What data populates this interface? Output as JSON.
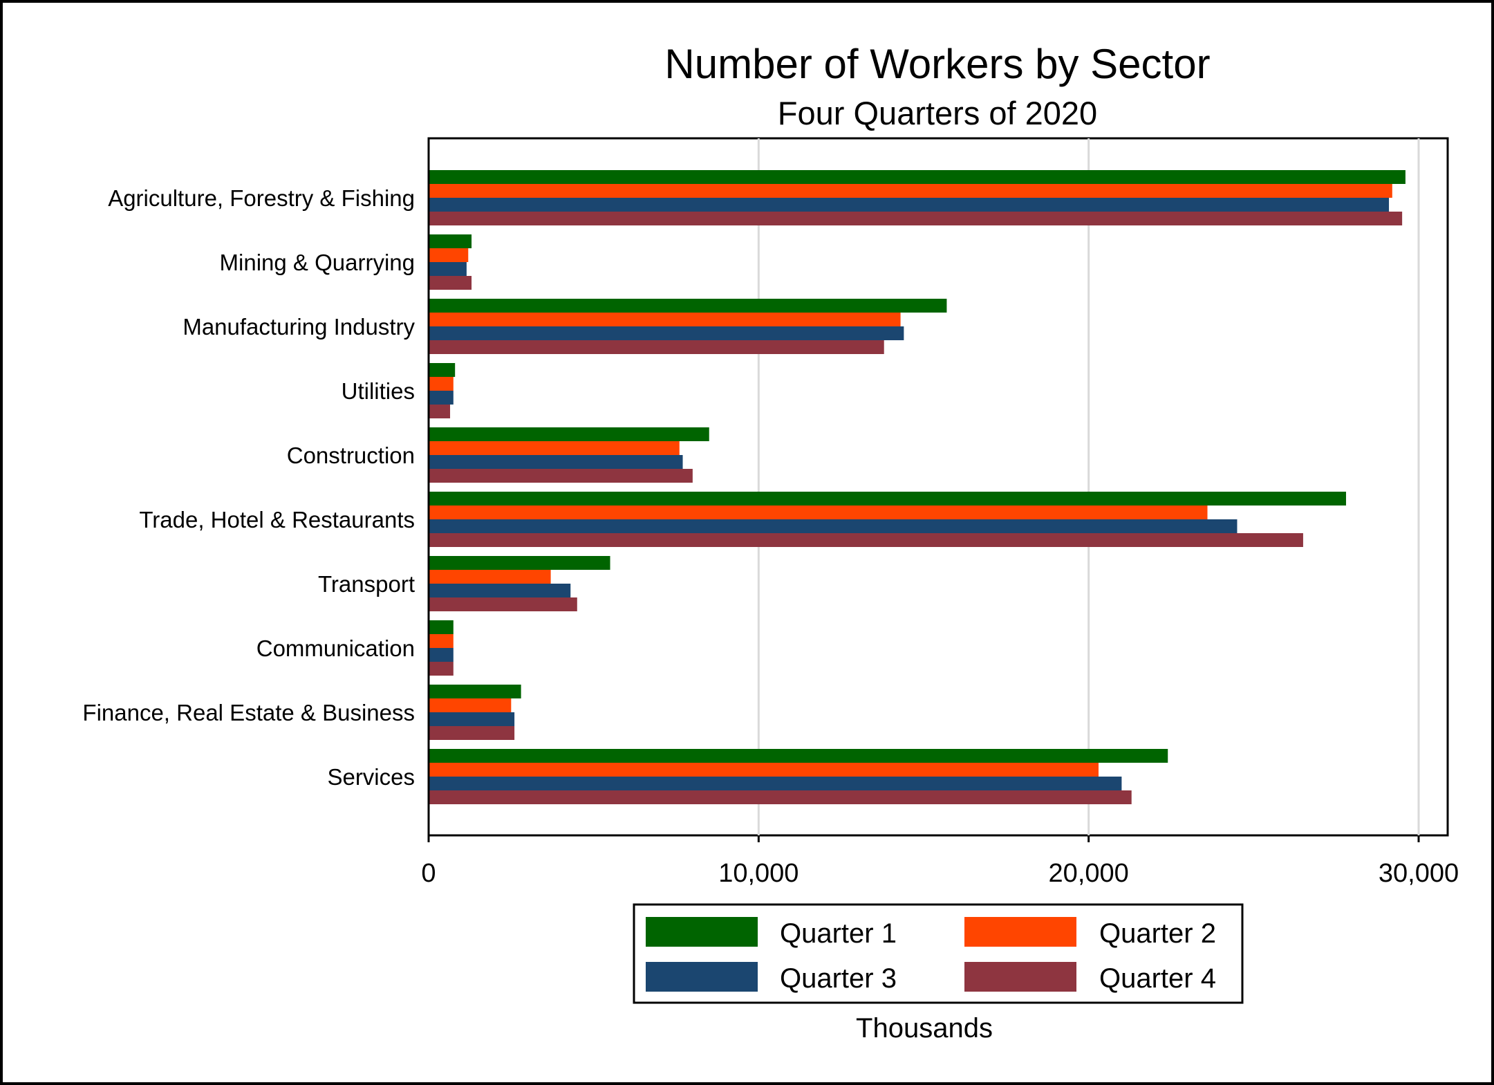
{
  "chart_data": {
    "type": "bar",
    "orientation": "horizontal",
    "title": "Number of Workers by Sector",
    "subtitle": "Four Quarters of 2020",
    "xlabel": "Thousands",
    "xlim": [
      0,
      30000
    ],
    "xticks": [
      0,
      10000,
      20000,
      30000
    ],
    "xtick_labels": [
      "0",
      "10,000",
      "20,000",
      "30,000"
    ],
    "grid": true,
    "legend_position": "bottom",
    "categories": [
      "Agriculture, Forestry & Fishing",
      "Mining & Quarrying",
      "Manufacturing Industry",
      "Utilities",
      "Construction",
      "Trade, Hotel & Restaurants",
      "Transport",
      "Communication",
      "Finance, Real Estate & Business",
      "Services"
    ],
    "series": [
      {
        "name": "Quarter 1",
        "color": "#006400",
        "values": [
          29600,
          1300,
          15700,
          800,
          8500,
          27800,
          5500,
          750,
          2800,
          22400
        ]
      },
      {
        "name": "Quarter 2",
        "color": "#ff4500",
        "values": [
          29200,
          1200,
          14300,
          750,
          7600,
          23600,
          3700,
          750,
          2500,
          20300
        ]
      },
      {
        "name": "Quarter 3",
        "color": "#1b4670",
        "values": [
          29100,
          1150,
          14400,
          750,
          7700,
          24500,
          4300,
          750,
          2600,
          21000
        ]
      },
      {
        "name": "Quarter 4",
        "color": "#8e3540",
        "values": [
          29500,
          1300,
          13800,
          650,
          8000,
          26500,
          4500,
          750,
          2600,
          21300
        ]
      }
    ]
  }
}
